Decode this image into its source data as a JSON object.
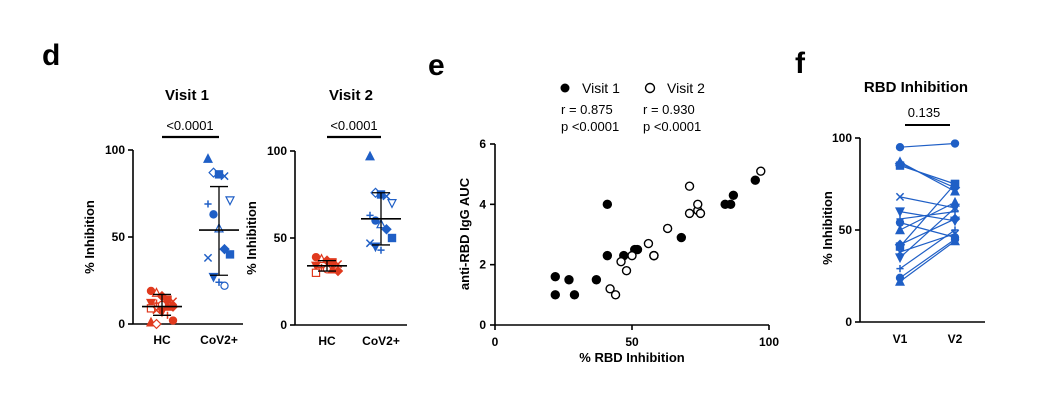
{
  "panels": {
    "d": "d",
    "e": "e",
    "f": "f"
  },
  "colors": {
    "hc": "#e03a1e",
    "cov": "#1f5fc6",
    "black": "#000000"
  },
  "chart_data": [
    {
      "id": "d1",
      "type": "scatter",
      "title": "Visit 1",
      "ylabel": "% Inhibition",
      "categories": [
        "HC",
        "CoV2+"
      ],
      "yticks": [
        "0",
        "50",
        "100"
      ],
      "ylim": [
        0,
        100
      ],
      "bracket_label": "<0.0001",
      "series": [
        {
          "group": "HC",
          "color": "#e03a1e",
          "values": [
            19,
            18,
            16,
            14,
            13,
            12,
            12,
            11,
            10,
            10,
            9,
            8,
            7,
            5,
            2,
            1,
            0
          ]
        },
        {
          "group": "CoV2+",
          "color": "#1f5fc6",
          "values": [
            95,
            87,
            86,
            85,
            71,
            69,
            63,
            55,
            43,
            40,
            38,
            27,
            24,
            22
          ]
        }
      ],
      "summary": [
        {
          "group": "HC",
          "mean": 10,
          "sd_low": 5,
          "sd_high": 17
        },
        {
          "group": "CoV2+",
          "mean": 54,
          "sd_low": 28,
          "sd_high": 79
        }
      ]
    },
    {
      "id": "d2",
      "type": "scatter",
      "title": "Visit 2",
      "ylabel": "% Inhibition",
      "categories": [
        "HC",
        "CoV2+"
      ],
      "yticks": [
        "0",
        "50",
        "100"
      ],
      "ylim": [
        0,
        100
      ],
      "bracket_label": "<0.0001",
      "series": [
        {
          "group": "HC",
          "color": "#e03a1e",
          "values": [
            39,
            38,
            37,
            36,
            35,
            34,
            33,
            32,
            32,
            31,
            30
          ]
        },
        {
          "group": "CoV2+",
          "color": "#1f5fc6",
          "values": [
            97,
            76,
            75,
            74,
            70,
            63,
            60,
            58,
            55,
            50,
            47,
            45,
            43
          ]
        }
      ],
      "summary": [
        {
          "group": "HC",
          "mean": 34,
          "sd_low": 31,
          "sd_high": 37
        },
        {
          "group": "CoV2+",
          "mean": 61,
          "sd_low": 46,
          "sd_high": 76
        }
      ]
    },
    {
      "id": "e",
      "type": "scatter",
      "xlabel": "% RBD Inhibition",
      "ylabel": "anti-RBD IgG AUC",
      "xlim": [
        0,
        100
      ],
      "ylim": [
        0,
        6
      ],
      "xticks": [
        "0",
        "50",
        "100"
      ],
      "yticks": [
        "0",
        "2",
        "4",
        "6"
      ],
      "legend": [
        {
          "name": "Visit 1",
          "marker": "filled",
          "r": "r = 0.875",
          "p": "p <0.0001"
        },
        {
          "name": "Visit 2",
          "marker": "open",
          "r": "r = 0.930",
          "p": "p <0.0001"
        }
      ],
      "series": [
        {
          "name": "Visit 1",
          "filled": true,
          "points": [
            [
              22,
              1.6
            ],
            [
              27,
              1.5
            ],
            [
              22,
              1.0
            ],
            [
              29,
              1.0
            ],
            [
              37,
              1.5
            ],
            [
              41,
              4.0
            ],
            [
              41,
              2.3
            ],
            [
              47,
              2.3
            ],
            [
              51,
              2.5
            ],
            [
              52,
              2.5
            ],
            [
              58,
              2.3
            ],
            [
              58,
              2.3
            ],
            [
              68,
              2.9
            ],
            [
              84,
              4.0
            ],
            [
              86,
              4.0
            ],
            [
              87,
              4.3
            ],
            [
              95,
              4.8
            ]
          ]
        },
        {
          "name": "Visit 2",
          "filled": false,
          "points": [
            [
              42,
              1.2
            ],
            [
              44,
              1.0
            ],
            [
              46,
              2.1
            ],
            [
              48,
              1.8
            ],
            [
              50,
              2.3
            ],
            [
              56,
              2.7
            ],
            [
              58,
              2.3
            ],
            [
              63,
              3.2
            ],
            [
              71,
              4.6
            ],
            [
              71,
              3.7
            ],
            [
              74,
              3.8
            ],
            [
              75,
              3.7
            ],
            [
              74,
              4.0
            ],
            [
              97,
              5.1
            ]
          ]
        }
      ]
    },
    {
      "id": "f",
      "type": "line",
      "title": "RBD Inhibition",
      "ylabel": "% Inhibition",
      "categories": [
        "V1",
        "V2"
      ],
      "yticks": [
        "0",
        "50",
        "100"
      ],
      "ylim": [
        0,
        100
      ],
      "bracket_label": "0.135",
      "color": "#1f5fc6",
      "pairs": [
        [
          95,
          97
        ],
        [
          87,
          71
        ],
        [
          86,
          73
        ],
        [
          85,
          75
        ],
        [
          68,
          62
        ],
        [
          60,
          55
        ],
        [
          56,
          60
        ],
        [
          54,
          46
        ],
        [
          50,
          65
        ],
        [
          42,
          56
        ],
        [
          41,
          75
        ],
        [
          38,
          48
        ],
        [
          35,
          62
        ],
        [
          29,
          50
        ],
        [
          24,
          45
        ],
        [
          22,
          44
        ]
      ]
    }
  ]
}
